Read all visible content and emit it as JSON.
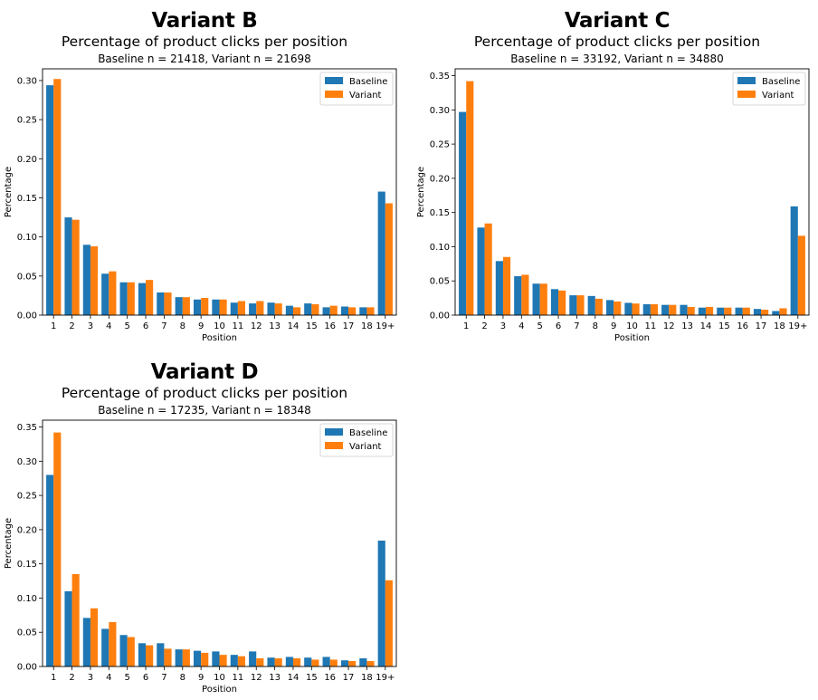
{
  "colors": {
    "baseline": "#1f77b4",
    "variant": "#ff7f0e"
  },
  "chart_data": [
    {
      "type": "bar",
      "variant_title": "Variant B",
      "title": "Percentage of product clicks per position",
      "subtitle": "Baseline n = 21418, Variant n = 21698",
      "xlabel": "Position",
      "ylabel": "Percentage",
      "ylim": [
        0,
        0.315
      ],
      "yticks": [
        0.0,
        0.05,
        0.1,
        0.15,
        0.2,
        0.25,
        0.3
      ],
      "ytick_labels": [
        "0.00",
        "0.05",
        "0.10",
        "0.15",
        "0.20",
        "0.25",
        "0.30"
      ],
      "legend_position": "top-right",
      "categories": [
        "1",
        "2",
        "3",
        "4",
        "5",
        "6",
        "7",
        "8",
        "9",
        "10",
        "11",
        "12",
        "13",
        "14",
        "15",
        "16",
        "17",
        "18",
        "19+"
      ],
      "series": [
        {
          "name": "Baseline",
          "values": [
            0.294,
            0.125,
            0.09,
            0.053,
            0.042,
            0.041,
            0.029,
            0.023,
            0.02,
            0.02,
            0.016,
            0.015,
            0.016,
            0.012,
            0.015,
            0.01,
            0.011,
            0.01,
            0.158
          ]
        },
        {
          "name": "Variant",
          "values": [
            0.302,
            0.122,
            0.088,
            0.056,
            0.042,
            0.045,
            0.029,
            0.023,
            0.022,
            0.02,
            0.018,
            0.018,
            0.015,
            0.01,
            0.014,
            0.012,
            0.01,
            0.01,
            0.143
          ]
        }
      ]
    },
    {
      "type": "bar",
      "variant_title": "Variant C",
      "title": "Percentage of product clicks per position",
      "subtitle": "Baseline n = 33192, Variant n = 34880",
      "xlabel": "Position",
      "ylabel": "Percentage",
      "ylim": [
        0,
        0.36
      ],
      "yticks": [
        0.0,
        0.05,
        0.1,
        0.15,
        0.2,
        0.25,
        0.3,
        0.35
      ],
      "ytick_labels": [
        "0.00",
        "0.05",
        "0.10",
        "0.15",
        "0.20",
        "0.25",
        "0.30",
        "0.35"
      ],
      "legend_position": "top-right",
      "categories": [
        "1",
        "2",
        "3",
        "4",
        "5",
        "6",
        "7",
        "8",
        "9",
        "10",
        "11",
        "12",
        "13",
        "14",
        "15",
        "16",
        "17",
        "18",
        "19+"
      ],
      "series": [
        {
          "name": "Baseline",
          "values": [
            0.297,
            0.128,
            0.079,
            0.057,
            0.046,
            0.038,
            0.029,
            0.028,
            0.022,
            0.018,
            0.016,
            0.015,
            0.015,
            0.011,
            0.011,
            0.011,
            0.009,
            0.006,
            0.159
          ]
        },
        {
          "name": "Variant",
          "values": [
            0.342,
            0.134,
            0.085,
            0.059,
            0.046,
            0.036,
            0.029,
            0.024,
            0.02,
            0.017,
            0.016,
            0.015,
            0.012,
            0.012,
            0.011,
            0.011,
            0.008,
            0.01,
            0.116
          ]
        }
      ]
    },
    {
      "type": "bar",
      "variant_title": "Variant D",
      "title": "Percentage of product clicks per position",
      "subtitle": "Baseline n = 17235, Variant n = 18348",
      "xlabel": "Position",
      "ylabel": "Percentage",
      "ylim": [
        0,
        0.36
      ],
      "yticks": [
        0.0,
        0.05,
        0.1,
        0.15,
        0.2,
        0.25,
        0.3,
        0.35
      ],
      "ytick_labels": [
        "0.00",
        "0.05",
        "0.10",
        "0.15",
        "0.20",
        "0.25",
        "0.30",
        "0.35"
      ],
      "legend_position": "top-right",
      "categories": [
        "1",
        "2",
        "3",
        "4",
        "5",
        "6",
        "7",
        "8",
        "9",
        "10",
        "11",
        "12",
        "13",
        "14",
        "15",
        "16",
        "17",
        "18",
        "19+"
      ],
      "series": [
        {
          "name": "Baseline",
          "values": [
            0.28,
            0.11,
            0.071,
            0.055,
            0.046,
            0.034,
            0.034,
            0.025,
            0.023,
            0.022,
            0.017,
            0.022,
            0.013,
            0.014,
            0.013,
            0.014,
            0.009,
            0.012,
            0.184
          ]
        },
        {
          "name": "Variant",
          "values": [
            0.342,
            0.135,
            0.085,
            0.065,
            0.043,
            0.031,
            0.026,
            0.025,
            0.02,
            0.017,
            0.015,
            0.012,
            0.012,
            0.012,
            0.01,
            0.01,
            0.008,
            0.008,
            0.126
          ]
        }
      ]
    }
  ]
}
